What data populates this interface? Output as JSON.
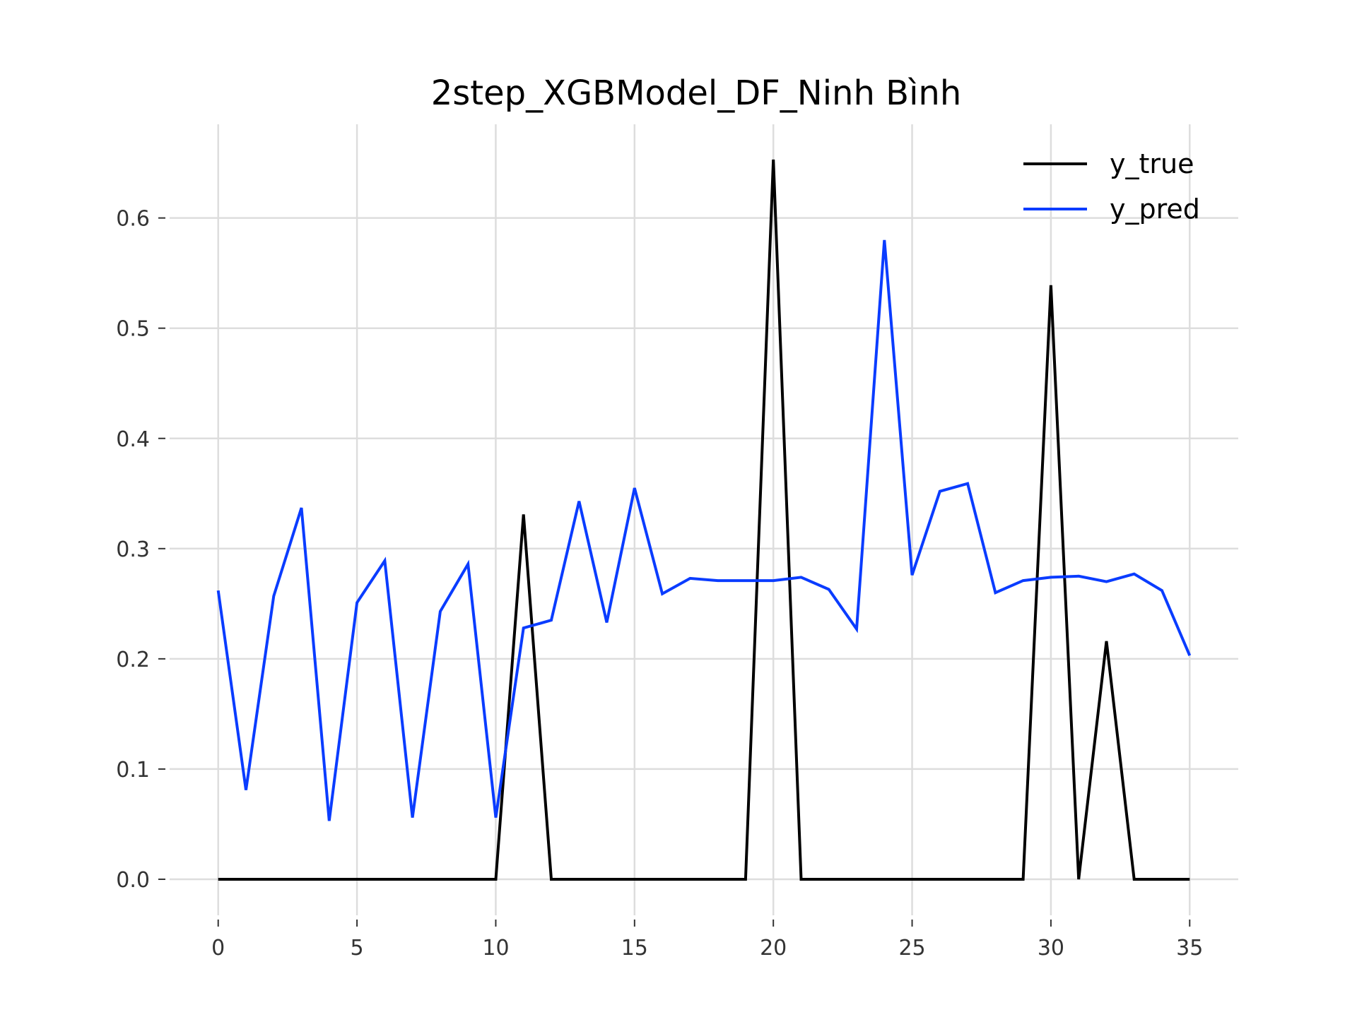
{
  "chart_data": {
    "type": "line",
    "title": "2step_XGBModel_DF_Ninh Bình",
    "xlabel": "",
    "ylabel": "",
    "xlim": [
      -1.75,
      36.75
    ],
    "ylim": [
      -0.0327,
      0.685
    ],
    "x_ticks": [
      0,
      5,
      10,
      15,
      20,
      25,
      30,
      35
    ],
    "x_tick_labels": [
      "0",
      "5",
      "10",
      "15",
      "20",
      "25",
      "30",
      "35"
    ],
    "y_ticks": [
      0.0,
      0.1,
      0.2,
      0.3,
      0.4,
      0.5,
      0.6
    ],
    "y_tick_labels": [
      "0.0",
      "0.1",
      "0.2",
      "0.3",
      "0.4",
      "0.5",
      "0.6"
    ],
    "grid": true,
    "legend_position": "top-right",
    "x": [
      0,
      1,
      2,
      3,
      4,
      5,
      6,
      7,
      8,
      9,
      10,
      11,
      12,
      13,
      14,
      15,
      16,
      17,
      18,
      19,
      20,
      21,
      22,
      23,
      24,
      25,
      26,
      27,
      28,
      29,
      30,
      31,
      32,
      33,
      34,
      35
    ],
    "series": [
      {
        "name": "y_true",
        "color": "#000000",
        "values": [
          0,
          0,
          0,
          0,
          0,
          0,
          0,
          0,
          0,
          0,
          0,
          0.331,
          0,
          0,
          0,
          0,
          0,
          0,
          0,
          0,
          0.653,
          0,
          0,
          0,
          0,
          0,
          0,
          0,
          0,
          0,
          0.539,
          0,
          0.216,
          0,
          0,
          0
        ]
      },
      {
        "name": "y_pred",
        "color": "#0a3cff",
        "values": [
          0.262,
          0.081,
          0.257,
          0.337,
          0.053,
          0.251,
          0.289,
          0.056,
          0.243,
          0.286,
          0.056,
          0.228,
          0.235,
          0.343,
          0.233,
          0.355,
          0.259,
          0.273,
          0.271,
          0.271,
          0.271,
          0.274,
          0.263,
          0.227,
          0.58,
          0.276,
          0.352,
          0.359,
          0.26,
          0.271,
          0.274,
          0.275,
          0.27,
          0.277,
          0.262,
          0.203
        ]
      }
    ]
  }
}
